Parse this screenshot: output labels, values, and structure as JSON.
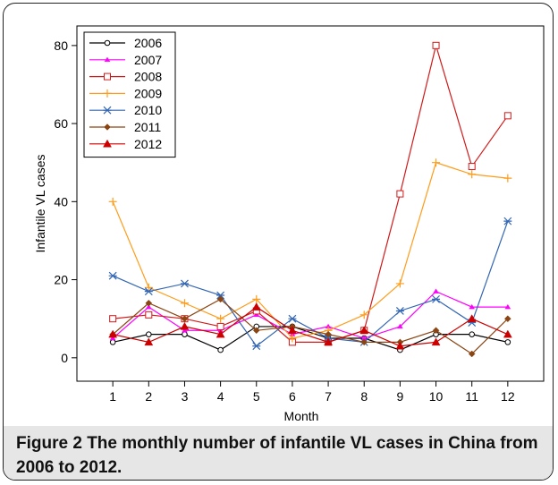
{
  "figure": {
    "caption_label": "Figure 2",
    "caption_text": "The monthly number of infantile VL cases in China from 2006 to 2012."
  },
  "chart_data": {
    "type": "line",
    "xlabel": "Month",
    "ylabel": "Infantile VL cases",
    "x": [
      1,
      2,
      3,
      4,
      5,
      6,
      7,
      8,
      9,
      10,
      11,
      12
    ],
    "xlim": [
      0,
      13
    ],
    "ylim": [
      -6,
      85
    ],
    "yticks": [
      0,
      20,
      40,
      60,
      80
    ],
    "grid": false,
    "legend_position": "top-left",
    "series": [
      {
        "name": "2006",
        "color": "#000000",
        "marker": "circle",
        "values": [
          4,
          6,
          6,
          2,
          8,
          8,
          5,
          5,
          2,
          6,
          6,
          4
        ]
      },
      {
        "name": "2007",
        "color": "#ff00ff",
        "marker": "triangle-small",
        "values": [
          5,
          13,
          7,
          7,
          11,
          6,
          8,
          5,
          8,
          17,
          13,
          13
        ]
      },
      {
        "name": "2008",
        "color": "#d11a1a",
        "marker": "square",
        "values": [
          10,
          11,
          10,
          8,
          12,
          4,
          4,
          7,
          42,
          80,
          49,
          62
        ]
      },
      {
        "name": "2009",
        "color": "#ff9c1a",
        "marker": "plus",
        "values": [
          40,
          18,
          14,
          10,
          15,
          5,
          7,
          11,
          19,
          50,
          47,
          46
        ]
      },
      {
        "name": "2010",
        "color": "#3366b3",
        "marker": "asterisk",
        "values": [
          21,
          17,
          19,
          16,
          3,
          10,
          5,
          4,
          12,
          15,
          9,
          35
        ]
      },
      {
        "name": "2011",
        "color": "#8b4513",
        "marker": "diamond",
        "values": [
          6,
          14,
          10,
          15,
          7,
          8,
          6,
          4,
          4,
          7,
          1,
          10
        ]
      },
      {
        "name": "2012",
        "color": "#cc0000",
        "marker": "triangle",
        "values": [
          6,
          4,
          8,
          6,
          13,
          7,
          4,
          7,
          3,
          4,
          10,
          6
        ]
      }
    ]
  }
}
